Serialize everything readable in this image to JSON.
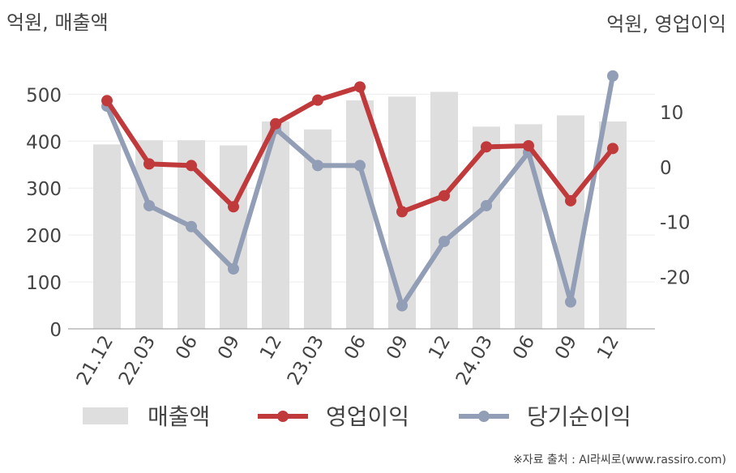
{
  "chart_data": {
    "type": "bar",
    "left_unit_label": "억원, 매출액",
    "right_unit_label": "억원, 영업이익",
    "categories": [
      "21.12",
      "22.03",
      "06",
      "09",
      "12",
      "23.03",
      "06",
      "09",
      "12",
      "24.03",
      "06",
      "09",
      "12"
    ],
    "y_left": {
      "ticks": [
        0,
        100,
        200,
        300,
        400,
        500
      ],
      "ylim": [
        0,
        580
      ]
    },
    "y_right": {
      "ticks": [
        -20,
        -10,
        0,
        10
      ],
      "ylim": [
        -29.5,
        20
      ]
    },
    "grid": true,
    "legend_position": "bottom",
    "series": [
      {
        "name": "매출액",
        "type": "bar",
        "axis": "left",
        "color": "#dedede",
        "values": [
          393,
          402,
          402,
          391,
          442,
          425,
          487,
          495,
          505,
          431,
          436,
          455,
          442
        ]
      },
      {
        "name": "영업이익",
        "type": "line",
        "axis": "right",
        "color": "#c0393b",
        "values": [
          12,
          0.5,
          0.2,
          -7.3,
          7.8,
          12.1,
          14.5,
          -8.2,
          -5.3,
          3.6,
          3.8,
          -6.2,
          3.3
        ]
      },
      {
        "name": "당기순이익",
        "type": "line",
        "axis": "right",
        "color": "#929db6",
        "values": [
          11,
          -7.1,
          -10.9,
          -18.6,
          6.9,
          0.2,
          0.2,
          -25.3,
          -13.6,
          -7.1,
          2.6,
          -24.6,
          16.5
        ]
      }
    ]
  },
  "source_note": "※자료 출처 : AI라씨로(www.rassiro.com)"
}
